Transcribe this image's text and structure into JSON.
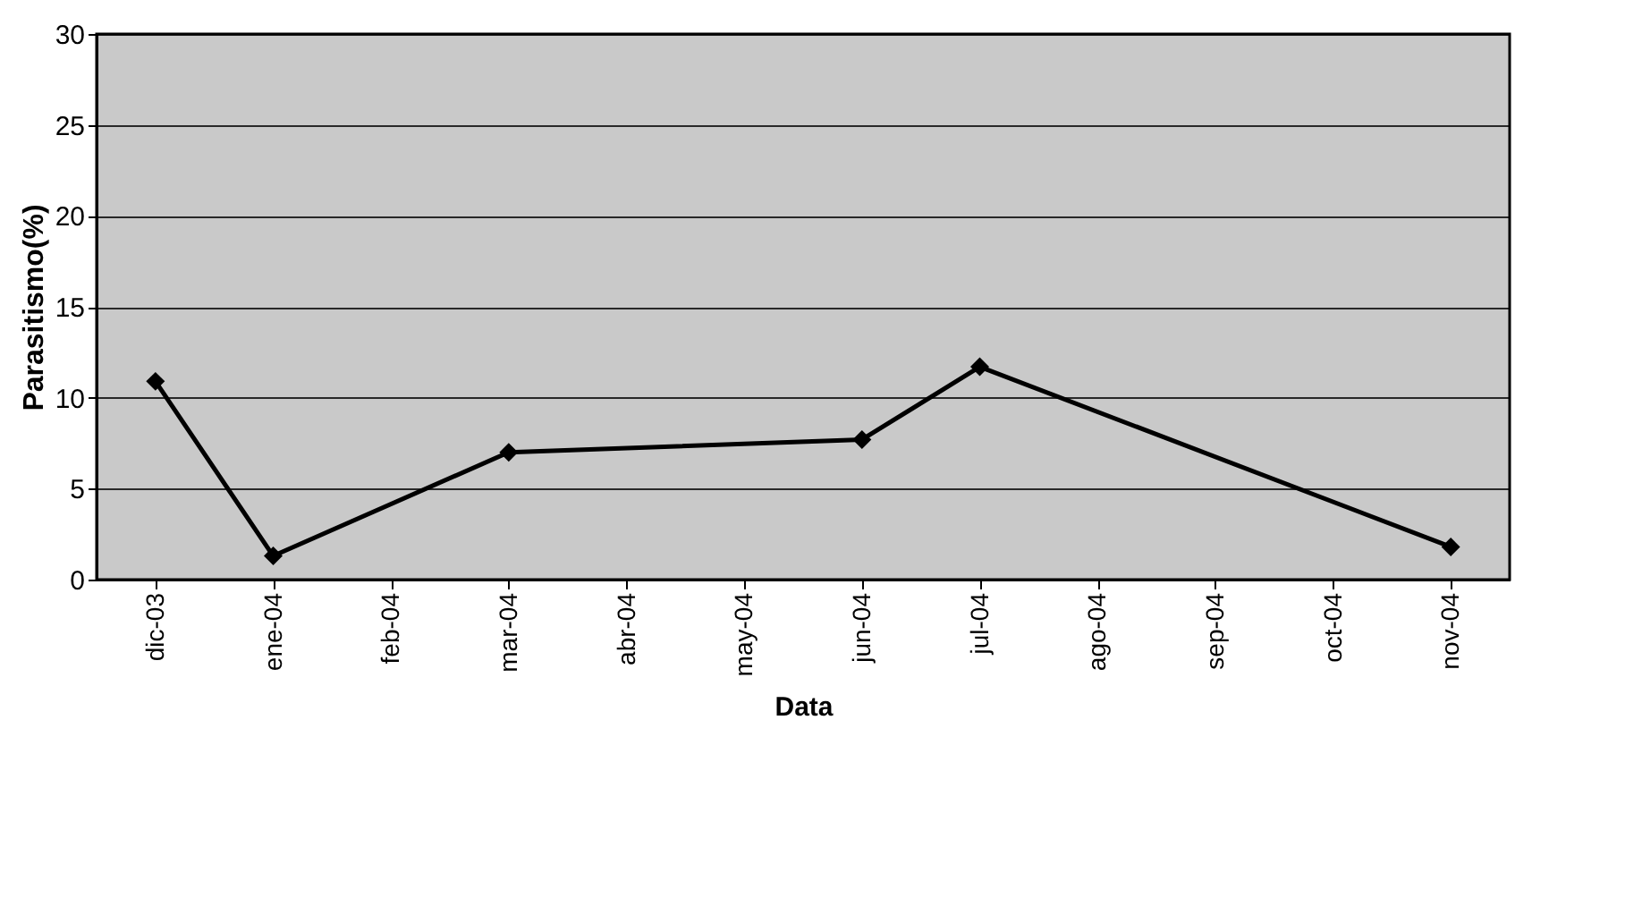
{
  "chart_data": {
    "type": "line",
    "xlabel": "Data",
    "ylabel": "Parasitismo(%)",
    "categories": [
      "dic-03",
      "ene-04",
      "feb-04",
      "mar-04",
      "abr-04",
      "may-04",
      "jun-04",
      "jul-04",
      "ago-04",
      "sep-04",
      "oct-04",
      "nov-04"
    ],
    "series": [
      {
        "color": "#000000",
        "values": [
          10.9,
          1.3,
          null,
          7.0,
          null,
          null,
          7.7,
          11.7,
          null,
          null,
          null,
          1.8
        ]
      }
    ],
    "ylim": [
      0,
      30
    ],
    "yticks": [
      0,
      5,
      10,
      15,
      20,
      25,
      30
    ],
    "grid": "y",
    "marker": "diamond",
    "line_style": "solid"
  }
}
